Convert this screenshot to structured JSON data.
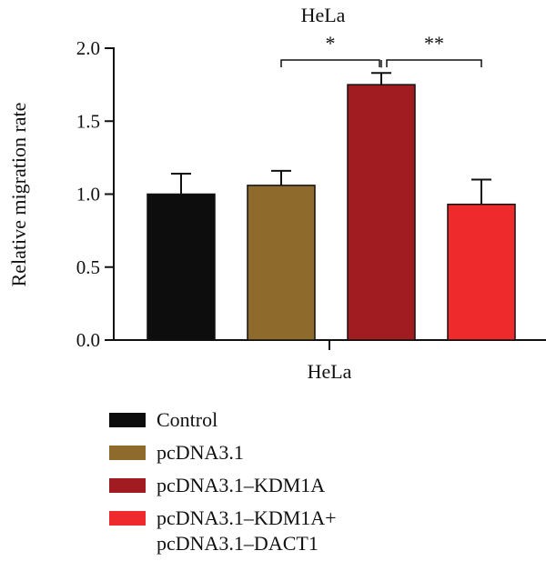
{
  "chart_data": {
    "type": "bar",
    "title": "HeLa",
    "ylabel": "Relative migration rate",
    "xlabel": "HeLa",
    "ylim": [
      0,
      2.0
    ],
    "yticks": [
      "0.0",
      "0.5",
      "1.0",
      "1.5",
      "2.0"
    ],
    "categories": [
      "Control",
      "pcDNA3.1",
      "pcDNA3.1–KDM1A",
      "pcDNA3.1–KDM1A+ pcDNA3.1–DACT1"
    ],
    "values": [
      1.0,
      1.06,
      1.75,
      0.93
    ],
    "errors": [
      0.14,
      0.1,
      0.08,
      0.17
    ],
    "colors": [
      "#0d0d0d",
      "#8f6a2d",
      "#a01c20",
      "#ee2a2d"
    ],
    "grid": false,
    "legend_position": "bottom",
    "significance": [
      {
        "from": 1,
        "to": 2,
        "label": "*"
      },
      {
        "from": 2,
        "to": 3,
        "label": "**"
      }
    ]
  },
  "legend": {
    "items": [
      {
        "label": "Control",
        "color": "#0d0d0d"
      },
      {
        "label": "pcDNA3.1",
        "color": "#8f6a2d"
      },
      {
        "label": "pcDNA3.1–KDM1A",
        "color": "#a01c20"
      },
      {
        "label_line1": "pcDNA3.1–KDM1A+",
        "label_line2": "pcDNA3.1–DACT1",
        "color": "#ee2a2d"
      }
    ]
  }
}
